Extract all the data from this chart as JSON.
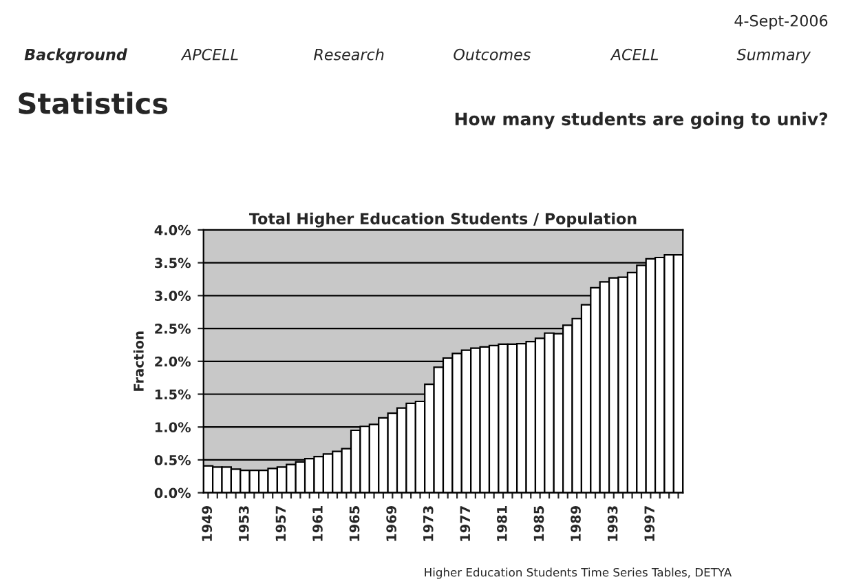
{
  "chart_data": {
    "type": "bar",
    "title": "Total Higher Education Students / Population",
    "ylabel": "Fraction",
    "categories": [
      "1949",
      null,
      null,
      null,
      "1953",
      null,
      null,
      null,
      "1957",
      null,
      null,
      null,
      "1961",
      null,
      null,
      null,
      "1965",
      null,
      null,
      null,
      "1969",
      null,
      null,
      null,
      "1973",
      null,
      null,
      null,
      "1977",
      null,
      null,
      null,
      "1981",
      null,
      null,
      null,
      "1985",
      null,
      null,
      null,
      "1989",
      null,
      null,
      null,
      "1993",
      null,
      null,
      null,
      "1997",
      null,
      null,
      null
    ],
    "values": [
      0.41,
      0.39,
      0.39,
      0.36,
      0.34,
      0.34,
      0.34,
      0.37,
      0.39,
      0.43,
      0.47,
      0.52,
      0.55,
      0.59,
      0.63,
      0.67,
      0.95,
      1.01,
      1.04,
      1.14,
      1.21,
      1.29,
      1.36,
      1.39,
      1.65,
      1.91,
      2.05,
      2.12,
      2.17,
      2.2,
      2.22,
      2.24,
      2.26,
      2.26,
      2.27,
      2.3,
      2.35,
      2.43,
      2.42,
      2.55,
      2.65,
      2.86,
      3.12,
      3.21,
      3.27,
      3.28,
      3.35,
      3.46,
      3.56,
      3.58,
      3.62,
      3.62
    ],
    "color": "#ffffff",
    "ylim": [
      0,
      4
    ],
    "yticks": [
      {
        "value": 0,
        "label": "0.0%"
      },
      {
        "value": 0.5,
        "label": "0.5%"
      },
      {
        "value": 1,
        "label": "1.0%"
      },
      {
        "value": 1.5,
        "label": "1.5%"
      },
      {
        "value": 2,
        "label": "2.0%"
      },
      {
        "value": 2.5,
        "label": "2.5%"
      },
      {
        "value": 3,
        "label": "3.0%"
      },
      {
        "value": 3.5,
        "label": "3.5%"
      },
      {
        "value": 4,
        "label": "4.0%"
      }
    ],
    "grid": "y",
    "annotations": [
      "4-Sept-2006",
      "Background",
      "APCELL",
      "Research",
      "Outcomes",
      "ACELL",
      "Summary",
      "Statistics",
      "How many students are going to univ?",
      "Higher Education Students Time Series Tables, DETYA"
    ]
  }
}
